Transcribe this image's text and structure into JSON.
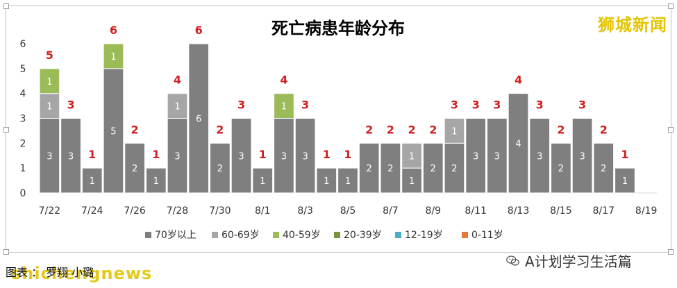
{
  "watermark_top": "狮城新闻",
  "credit": "图表 ： 罗翔 小璐",
  "watermark_bottom": "shichengnews",
  "wechat_account": "A计划学习生活篇",
  "colors": {
    "70岁以上": "#7f7f7f",
    "60-69岁": "#a6a6a6",
    "40-59岁": "#9bbb59",
    "20-39岁": "#77933c",
    "12-19岁": "#4bacc6",
    "0-11岁": "#e07b39",
    "total_label": "#d11e1e"
  },
  "chart_data": {
    "type": "bar",
    "stacked": true,
    "title": "死亡病患年龄分布",
    "ylim": [
      0,
      6
    ],
    "yticks": [
      "0",
      "1",
      "2",
      "3",
      "4",
      "5",
      "6"
    ],
    "grid": false,
    "legend_position": "bottom",
    "categories": [
      "7/22",
      "7/23",
      "7/24",
      "7/25",
      "7/26",
      "7/27",
      "7/28",
      "7/29",
      "7/30",
      "7/31",
      "8/1",
      "8/2",
      "8/3",
      "8/4",
      "8/5",
      "8/6",
      "8/7",
      "8/8",
      "8/9",
      "8/10",
      "8/11",
      "8/12",
      "8/13",
      "8/14",
      "8/15",
      "8/16",
      "8/17",
      "8/18",
      "8/19"
    ],
    "xtick_labels": [
      "7/22",
      "",
      "7/24",
      "",
      "7/26",
      "",
      "7/28",
      "",
      "7/30",
      "",
      "8/1",
      "",
      "8/3",
      "",
      "8/5",
      "",
      "8/7",
      "",
      "8/9",
      "",
      "8/11",
      "",
      "8/13",
      "",
      "8/15",
      "",
      "8/17",
      "",
      "8/19"
    ],
    "series": [
      {
        "name": "70岁以上",
        "values": [
          3,
          3,
          1,
          5,
          2,
          1,
          3,
          6,
          2,
          3,
          1,
          3,
          3,
          1,
          1,
          2,
          2,
          1,
          2,
          2,
          3,
          3,
          4,
          3,
          2,
          3,
          2,
          1,
          0
        ]
      },
      {
        "name": "60-69岁",
        "values": [
          1,
          0,
          0,
          0,
          0,
          0,
          1,
          0,
          0,
          0,
          0,
          0,
          0,
          0,
          0,
          0,
          0,
          1,
          0,
          1,
          0,
          0,
          0,
          0,
          0,
          0,
          0,
          0,
          0
        ]
      },
      {
        "name": "40-59岁",
        "values": [
          1,
          0,
          0,
          1,
          0,
          0,
          0,
          0,
          0,
          0,
          0,
          1,
          0,
          0,
          0,
          0,
          0,
          0,
          0,
          0,
          0,
          0,
          0,
          0,
          0,
          0,
          0,
          0,
          0
        ]
      },
      {
        "name": "20-39岁",
        "values": [
          0,
          0,
          0,
          0,
          0,
          0,
          0,
          0,
          0,
          0,
          0,
          0,
          0,
          0,
          0,
          0,
          0,
          0,
          0,
          0,
          0,
          0,
          0,
          0,
          0,
          0,
          0,
          0,
          0
        ]
      },
      {
        "name": "12-19岁",
        "values": [
          0,
          0,
          0,
          0,
          0,
          0,
          0,
          0,
          0,
          0,
          0,
          0,
          0,
          0,
          0,
          0,
          0,
          0,
          0,
          0,
          0,
          0,
          0,
          0,
          0,
          0,
          0,
          0,
          0
        ]
      },
      {
        "name": "0-11岁",
        "values": [
          0,
          0,
          0,
          0,
          0,
          0,
          0,
          0,
          0,
          0,
          0,
          0,
          0,
          0,
          0,
          0,
          0,
          0,
          0,
          0,
          0,
          0,
          0,
          0,
          0,
          0,
          0,
          0,
          0
        ]
      }
    ],
    "totals": [
      5,
      3,
      1,
      6,
      2,
      1,
      4,
      6,
      2,
      3,
      1,
      4,
      3,
      1,
      1,
      2,
      2,
      2,
      2,
      3,
      3,
      3,
      4,
      3,
      2,
      3,
      2,
      1,
      null
    ]
  }
}
